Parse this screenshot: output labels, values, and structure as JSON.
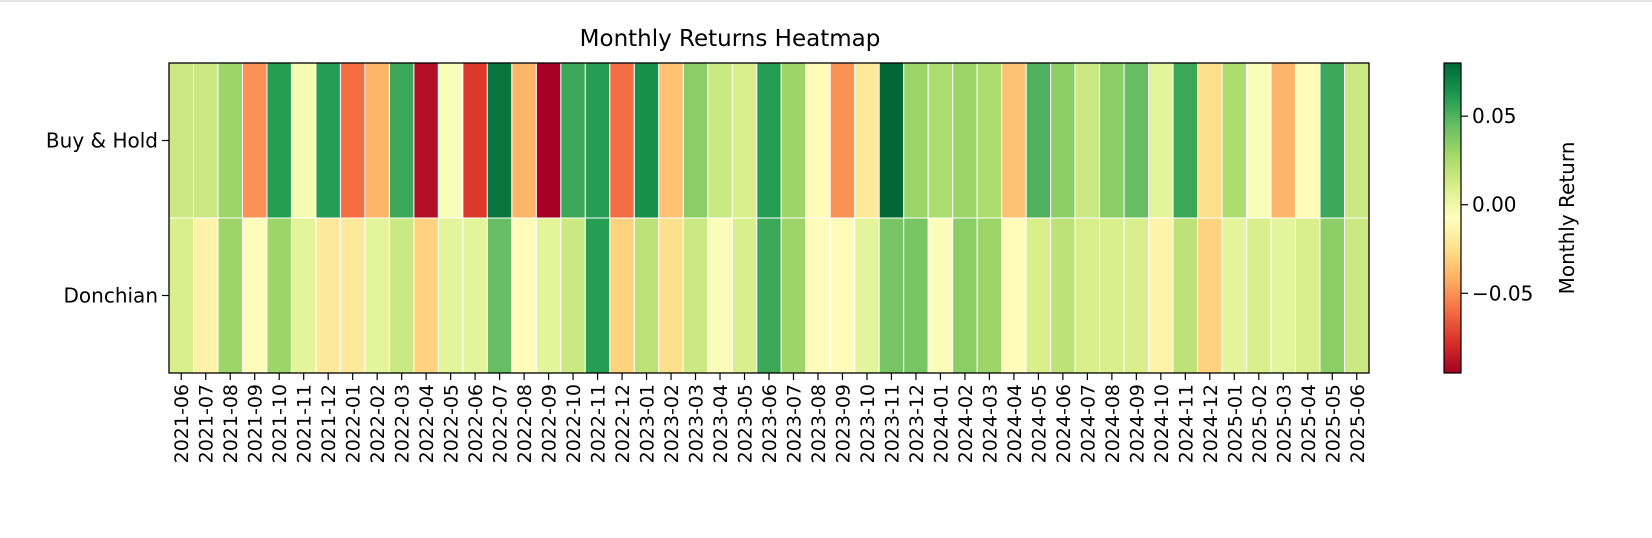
{
  "chart_data": {
    "type": "heatmap",
    "title": "Monthly Returns Heatmap",
    "xlabel": "",
    "ylabel": "",
    "rows": [
      "Buy & Hold",
      "Donchian"
    ],
    "columns": [
      "2021-06",
      "2021-07",
      "2021-08",
      "2021-09",
      "2021-10",
      "2021-11",
      "2021-12",
      "2022-01",
      "2022-02",
      "2022-03",
      "2022-04",
      "2022-05",
      "2022-06",
      "2022-07",
      "2022-08",
      "2022-09",
      "2022-10",
      "2022-11",
      "2022-12",
      "2023-01",
      "2023-02",
      "2023-03",
      "2023-04",
      "2023-05",
      "2023-06",
      "2023-07",
      "2023-08",
      "2023-09",
      "2023-10",
      "2023-11",
      "2023-12",
      "2024-01",
      "2024-02",
      "2024-03",
      "2024-04",
      "2024-05",
      "2024-06",
      "2024-07",
      "2024-08",
      "2024-09",
      "2024-10",
      "2024-11",
      "2024-12",
      "2025-01",
      "2025-02",
      "2025-03",
      "2025-04",
      "2025-05",
      "2025-06"
    ],
    "values": [
      [
        0.015,
        0.015,
        0.03,
        -0.05,
        0.06,
        -0.003,
        0.06,
        -0.06,
        -0.04,
        0.055,
        -0.09,
        -0.005,
        -0.075,
        0.075,
        -0.04,
        -0.095,
        0.055,
        0.06,
        -0.06,
        0.065,
        -0.035,
        0.035,
        0.015,
        0.01,
        0.06,
        0.03,
        -0.01,
        -0.05,
        -0.02,
        0.08,
        0.03,
        0.025,
        0.03,
        0.025,
        -0.035,
        0.05,
        0.035,
        0.015,
        0.035,
        0.045,
        0.005,
        0.055,
        -0.025,
        0.025,
        -0.005,
        -0.04,
        -0.01,
        0.055,
        0.015
      ],
      [
        0.01,
        -0.015,
        0.03,
        -0.01,
        0.03,
        0.005,
        -0.02,
        -0.02,
        0.005,
        0.015,
        -0.03,
        0.005,
        0.005,
        0.045,
        -0.01,
        0.005,
        0.015,
        0.06,
        -0.03,
        0.02,
        -0.025,
        0.015,
        -0.005,
        0.01,
        0.055,
        0.03,
        -0.01,
        -0.01,
        0.005,
        0.04,
        0.04,
        -0.005,
        0.035,
        0.03,
        -0.01,
        0.01,
        0.02,
        0.01,
        0.01,
        0.01,
        -0.015,
        0.02,
        -0.03,
        0.005,
        0.01,
        0.005,
        0.01,
        0.035,
        0.015
      ]
    ],
    "colorbar": {
      "label": "Monthly Return",
      "vmin": -0.095,
      "vmax": 0.08,
      "ticks": [
        0.05,
        0.0,
        -0.05
      ],
      "tick_labels": [
        "0.05",
        "0.00",
        "−0.05"
      ],
      "colormap": "RdYlGn"
    },
    "grid": false,
    "legend": "right"
  }
}
